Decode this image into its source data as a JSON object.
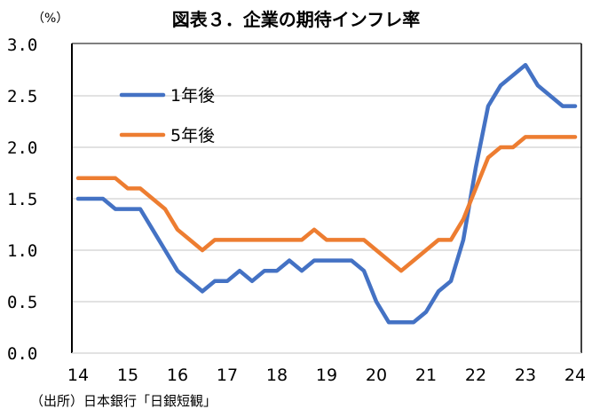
{
  "title": "図表３．企業の期待インフレ率",
  "source": "（出所）日本銀行「日銀短観」",
  "chart_data": {
    "type": "line",
    "title": "図表３．企業の期待インフレ率",
    "ylabel": "（%）",
    "xlabel": "",
    "ylim": [
      0,
      3.0
    ],
    "yticks": [
      "0.0",
      "0.5",
      "1.0",
      "1.5",
      "2.0",
      "2.5",
      "3.0"
    ],
    "xticks": [
      "14",
      "15",
      "16",
      "17",
      "18",
      "19",
      "20",
      "21",
      "22",
      "23",
      "24"
    ],
    "x_frequency": "quarterly, 2014Q1–2024Q1",
    "grid": true,
    "legend_position": "upper-left-inside",
    "series": [
      {
        "name": "1年後",
        "color": "#4472C4",
        "values": [
          1.5,
          1.5,
          1.5,
          1.4,
          1.4,
          1.4,
          1.2,
          1.0,
          0.8,
          0.7,
          0.6,
          0.7,
          0.7,
          0.8,
          0.7,
          0.8,
          0.8,
          0.9,
          0.8,
          0.9,
          0.9,
          0.9,
          0.9,
          0.8,
          0.5,
          0.3,
          0.3,
          0.3,
          0.4,
          0.6,
          0.7,
          1.1,
          1.8,
          2.4,
          2.6,
          2.7,
          2.8,
          2.6,
          2.5,
          2.4,
          2.4
        ]
      },
      {
        "name": "5年後",
        "color": "#ED7D31",
        "values": [
          1.7,
          1.7,
          1.7,
          1.7,
          1.6,
          1.6,
          1.5,
          1.4,
          1.2,
          1.1,
          1.0,
          1.1,
          1.1,
          1.1,
          1.1,
          1.1,
          1.1,
          1.1,
          1.1,
          1.2,
          1.1,
          1.1,
          1.1,
          1.1,
          1.0,
          0.9,
          0.8,
          0.9,
          1.0,
          1.1,
          1.1,
          1.3,
          1.6,
          1.9,
          2.0,
          2.0,
          2.1,
          2.1,
          2.1,
          2.1,
          2.1
        ]
      }
    ]
  }
}
